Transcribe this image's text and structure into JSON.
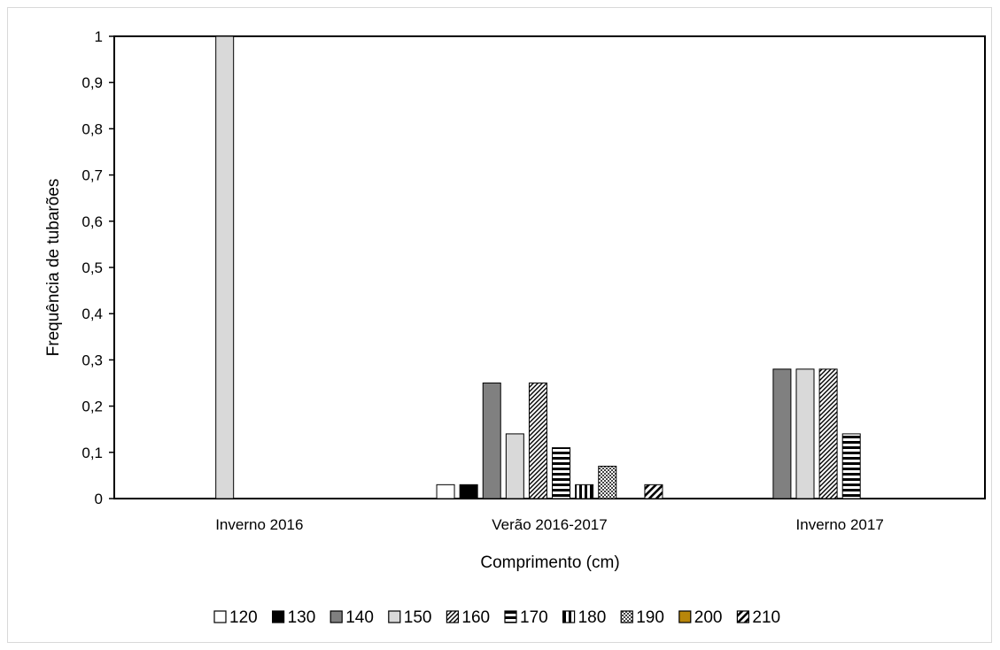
{
  "chart_data": {
    "type": "bar",
    "title": "",
    "xlabel": "Comprimento (cm)",
    "ylabel": "Frequência de tubarões",
    "ylim": [
      0,
      1
    ],
    "yticks": [
      "0",
      "0,1",
      "0,2",
      "0,3",
      "0,4",
      "0,5",
      "0,6",
      "0,7",
      "0,8",
      "0,9",
      "1"
    ],
    "categories": [
      "Inverno 2016",
      "Verão 2016-2017",
      "Inverno 2017"
    ],
    "legend_position": "bottom",
    "grid": false,
    "series": [
      {
        "name": "120",
        "pattern": "white",
        "color": "#ffffff",
        "values": [
          0,
          0.03,
          0
        ]
      },
      {
        "name": "130",
        "pattern": "black",
        "color": "#000000",
        "values": [
          0,
          0.03,
          0
        ]
      },
      {
        "name": "140",
        "pattern": "dark-gray",
        "color": "#808080",
        "values": [
          0,
          0.25,
          0.28
        ]
      },
      {
        "name": "150",
        "pattern": "light-gray",
        "color": "#d9d9d9",
        "values": [
          1,
          0.14,
          0.28
        ]
      },
      {
        "name": "160",
        "pattern": "diagonal",
        "color": "#000000",
        "values": [
          0,
          0.25,
          0.28
        ]
      },
      {
        "name": "170",
        "pattern": "horizontal",
        "color": "#000000",
        "values": [
          0,
          0.11,
          0.14
        ]
      },
      {
        "name": "180",
        "pattern": "vertical",
        "color": "#000000",
        "values": [
          0,
          0.03,
          0
        ]
      },
      {
        "name": "190",
        "pattern": "checker",
        "color": "#000000",
        "values": [
          0,
          0.07,
          0
        ]
      },
      {
        "name": "200",
        "pattern": "gold",
        "color": "#b8860b",
        "values": [
          0,
          0,
          0
        ]
      },
      {
        "name": "210",
        "pattern": "wide-diagonal",
        "color": "#000000",
        "values": [
          0,
          0.03,
          0
        ]
      }
    ]
  }
}
